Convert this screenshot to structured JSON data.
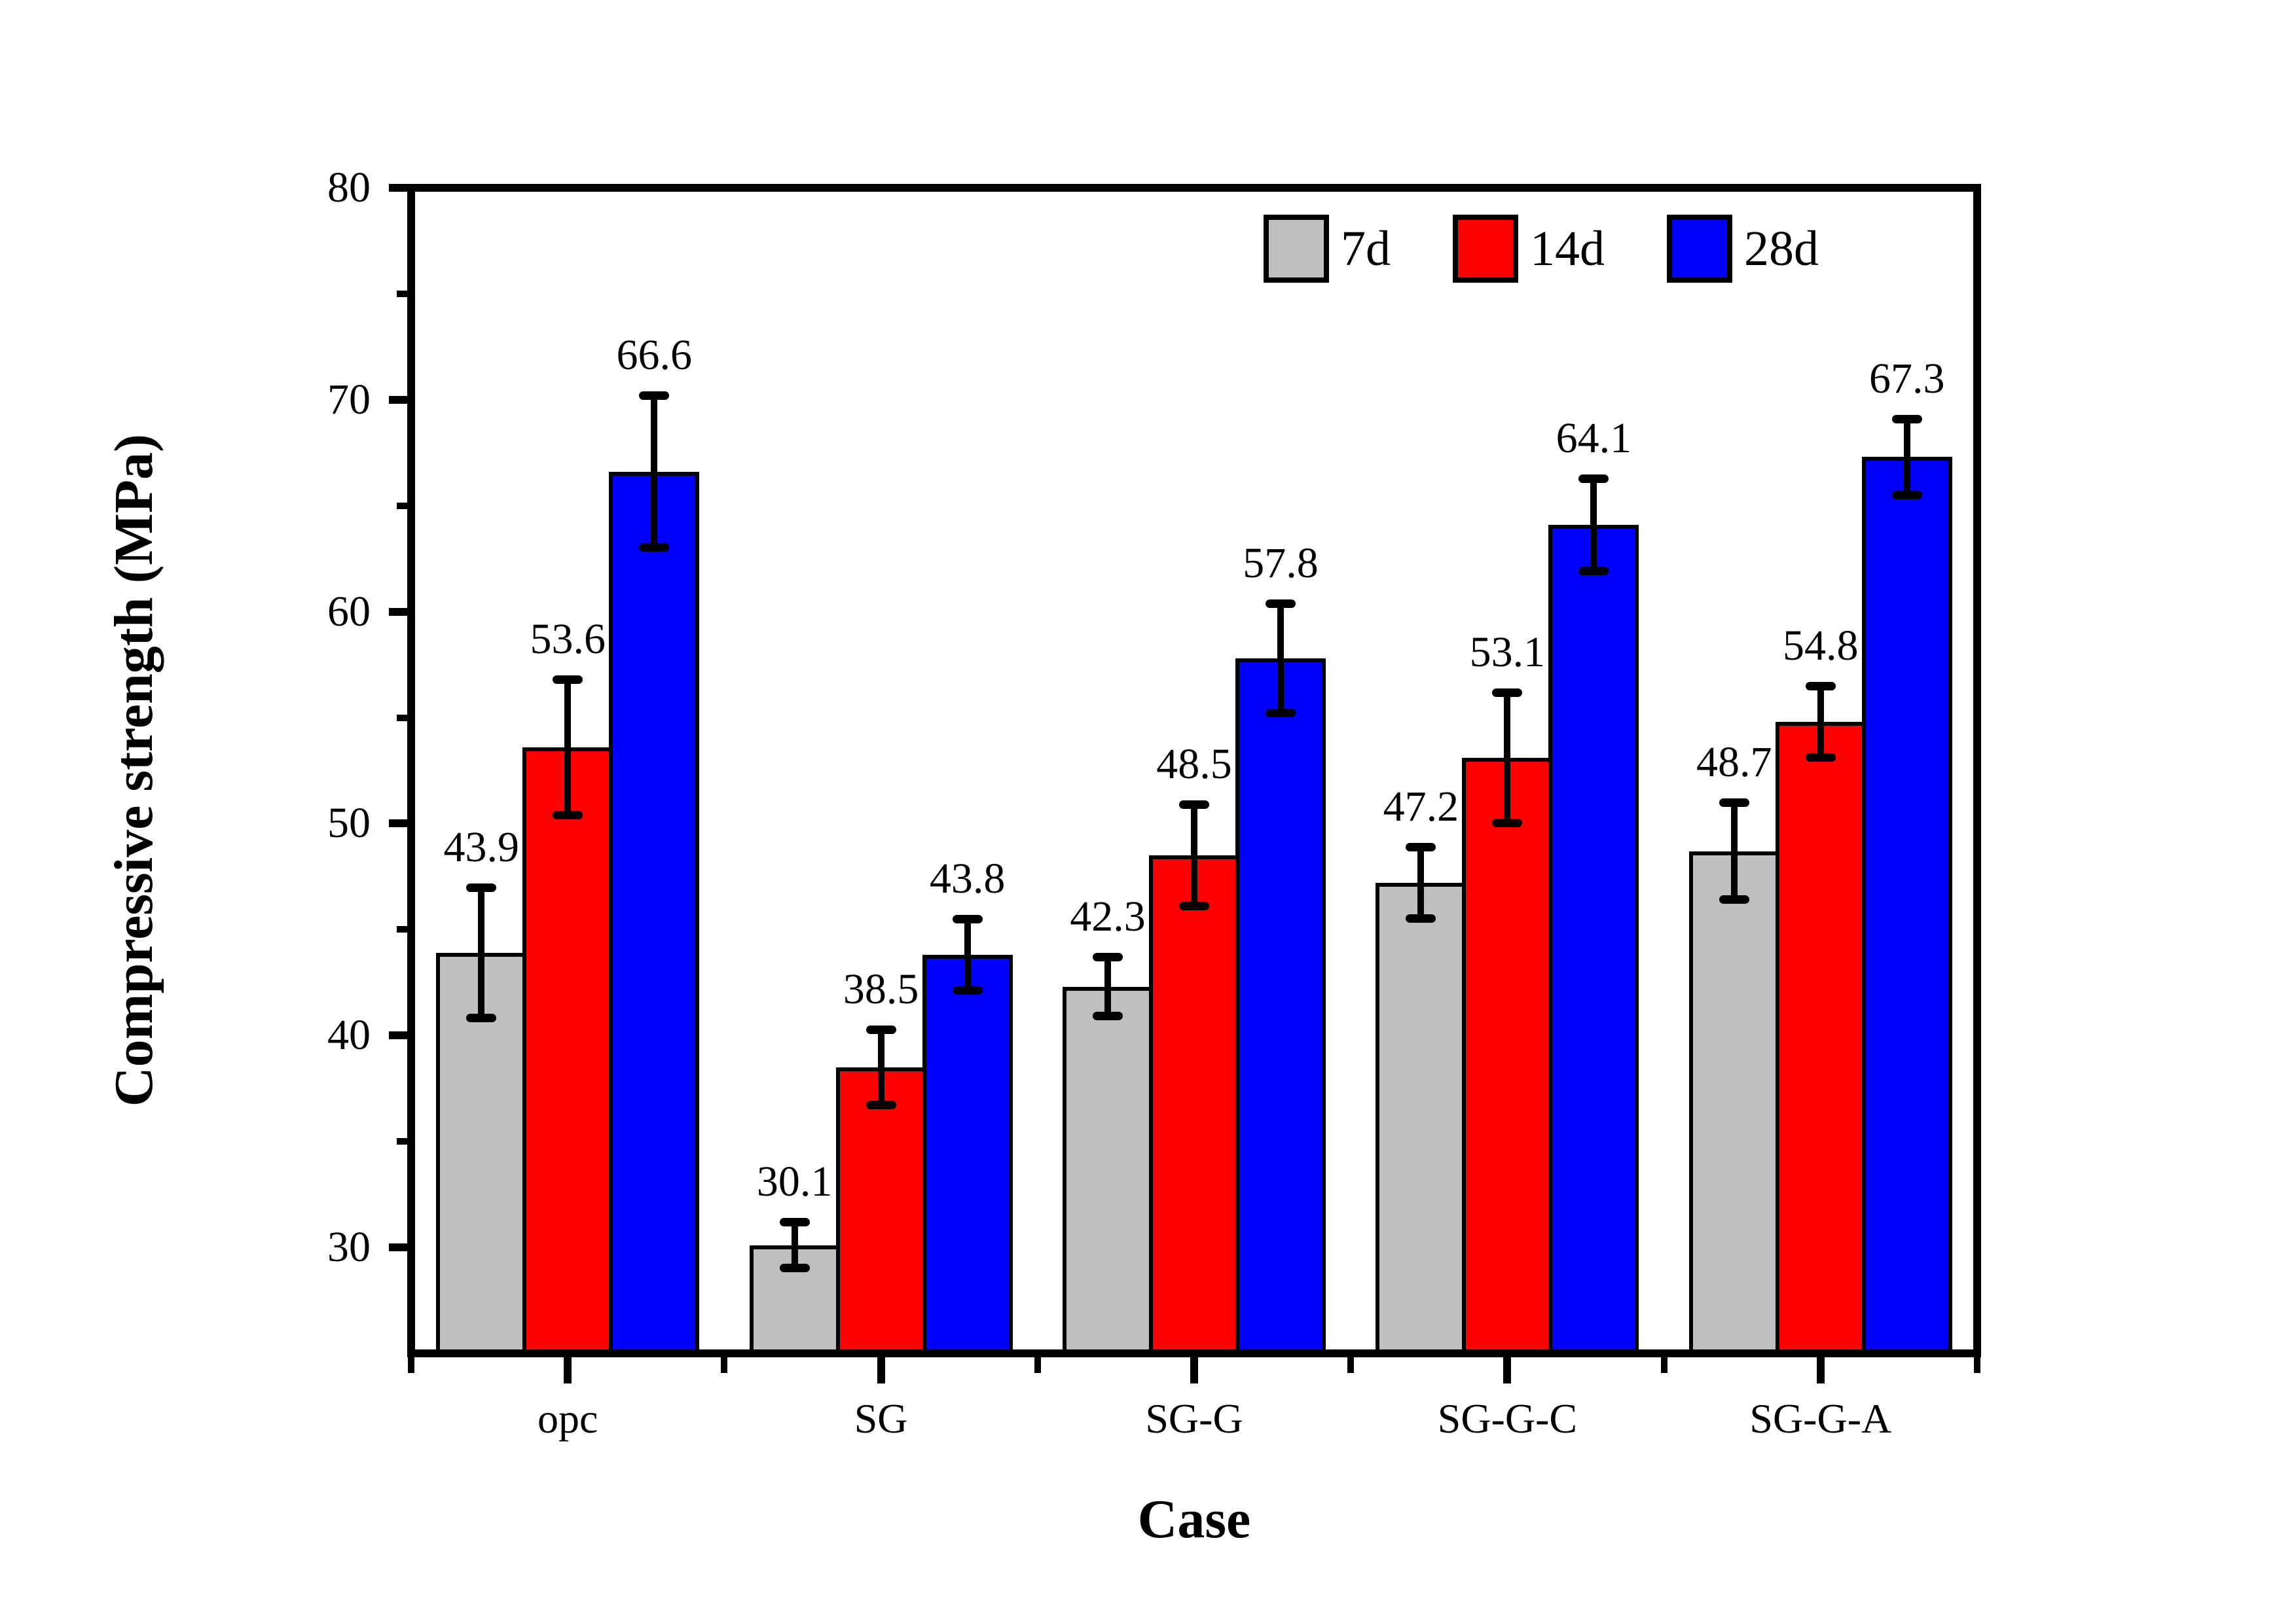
{
  "chart_data": {
    "type": "bar",
    "title": "",
    "xlabel": "Case",
    "ylabel": "Compressive strength (MPa)",
    "ylim": [
      25,
      80
    ],
    "yticks_major": [
      30,
      40,
      50,
      60,
      70,
      80
    ],
    "yticks_minor": [
      35,
      45,
      55,
      65,
      75
    ],
    "grid": "off",
    "legend_position": "top-right-inside",
    "bar_value_labels": true,
    "categories": [
      "opc",
      "SG",
      "SG-G",
      "SG-G-C",
      "SG-G-A"
    ],
    "series": [
      {
        "name": "7d",
        "color": "#bfbfbf",
        "values": [
          43.9,
          30.1,
          42.3,
          47.2,
          48.7
        ],
        "errors": [
          3.1,
          1.1,
          1.4,
          1.7,
          2.3
        ]
      },
      {
        "name": "14d",
        "color": "#ff0000",
        "values": [
          53.6,
          38.5,
          48.5,
          53.1,
          54.8
        ],
        "errors": [
          3.2,
          1.8,
          2.4,
          3.1,
          1.7
        ]
      },
      {
        "name": "28d",
        "color": "#0000ff",
        "values": [
          66.6,
          43.8,
          57.8,
          64.1,
          67.3
        ],
        "errors": [
          3.6,
          1.7,
          2.6,
          2.2,
          1.8
        ]
      }
    ]
  },
  "colors": {
    "background": "#ffffff",
    "axis": "#000000",
    "bar_border": "#000000",
    "error_bar": "#000000"
  }
}
